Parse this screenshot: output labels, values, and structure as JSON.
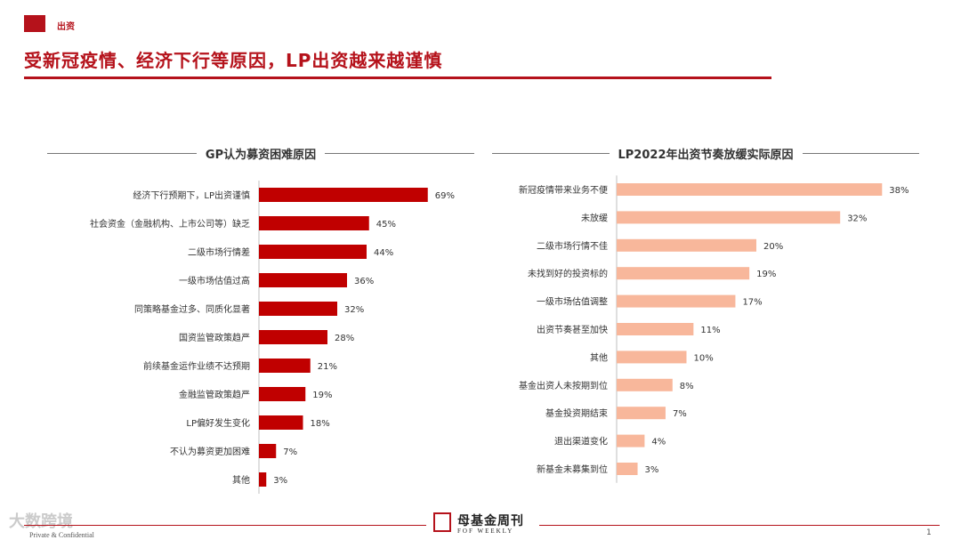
{
  "header": {
    "section_tag": "出资",
    "title": "受新冠疫情、经济下行等原因，LP出资越来越谨慎"
  },
  "colors": {
    "accent": "#b5121b",
    "left_bar": "#c00000",
    "right_bar": "#f8b79b"
  },
  "chart_data": [
    {
      "type": "bar",
      "orientation": "horizontal",
      "title": "GP认为募资困难原因",
      "categories": [
        "经济下行预期下，LP出资谨慎",
        "社会资金（金融机构、上市公司等）缺乏",
        "二级市场行情差",
        "一级市场估值过高",
        "同策略基金过多、同质化显著",
        "国资监管政策趋严",
        "前续基金运作业绩不达预期",
        "金融监管政策趋严",
        "LP偏好发生变化",
        "不认为募资更加困难",
        "其他"
      ],
      "values": [
        69,
        45,
        44,
        36,
        32,
        28,
        21,
        19,
        18,
        7,
        3
      ],
      "value_labels": [
        "69%",
        "45%",
        "44%",
        "36%",
        "32%",
        "28%",
        "21%",
        "19%",
        "18%",
        "7%",
        "3%"
      ],
      "unit": "%"
    },
    {
      "type": "bar",
      "orientation": "horizontal",
      "title": "LP2022年出资节奏放缓实际原因",
      "categories": [
        "新冠疫情带来业务不便",
        "未放缓",
        "二级市场行情不佳",
        "未找到好的投资标的",
        "一级市场估值调整",
        "出资节奏甚至加快",
        "其他",
        "基金出资人未按期到位",
        "基金投资期结束",
        "退出渠道变化",
        "新基金未募集到位"
      ],
      "values": [
        38,
        32,
        20,
        19,
        17,
        11,
        10,
        8,
        7,
        4,
        3
      ],
      "value_labels": [
        "38%",
        "32%",
        "20%",
        "19%",
        "17%",
        "11%",
        "10%",
        "8%",
        "7%",
        "4%",
        "3%"
      ],
      "unit": "%"
    }
  ],
  "footer": {
    "brand": "母基金周刊",
    "brand_sub": "FOF WEEKLY",
    "confidential": "Private & Confidential",
    "page": "1",
    "watermark": "大数跨境"
  }
}
